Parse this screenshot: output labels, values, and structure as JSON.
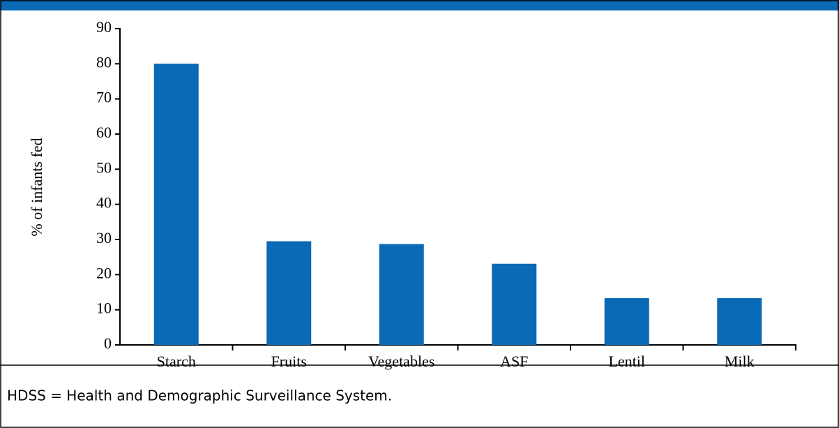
{
  "chart_data": {
    "type": "bar",
    "y_label": "% of infants fed",
    "categories": [
      "Starch",
      "Fruits",
      "Vegetables",
      "ASF",
      "Lentil",
      "Milk"
    ],
    "values": [
      80,
      29.5,
      28.7,
      23.1,
      13.3,
      13.3
    ],
    "color": "#0a6ab5",
    "ylim": [
      0,
      90
    ],
    "yticks": [
      0,
      10,
      20,
      30,
      40,
      50,
      60,
      70,
      80,
      90
    ]
  },
  "footnote": "HDSS = Health and Demographic Surveillance System."
}
